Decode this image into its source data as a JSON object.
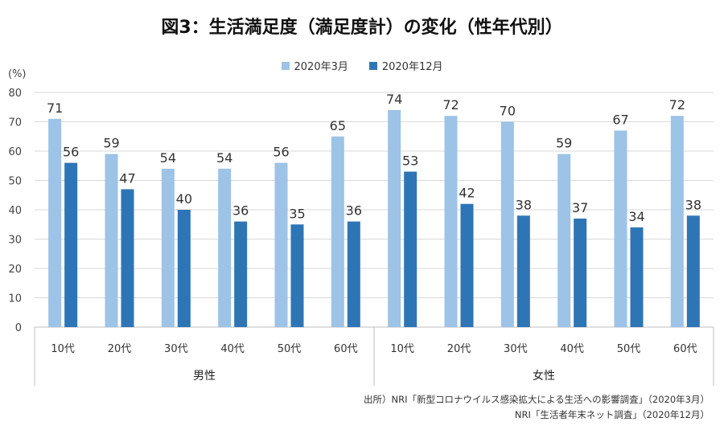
{
  "chart_data": {
    "type": "bar",
    "title": "図3：生活満足度（満足度計）の変化（性年代別）",
    "ylabel": "(%)",
    "ylim": [
      0,
      80
    ],
    "yticks": [
      0,
      10,
      20,
      30,
      40,
      50,
      60,
      70,
      80
    ],
    "grid": true,
    "legend_position": "top-center",
    "groups": [
      {
        "name": "男性",
        "categories": [
          "10代",
          "20代",
          "30代",
          "40代",
          "50代",
          "60代"
        ]
      },
      {
        "name": "女性",
        "categories": [
          "10代",
          "20代",
          "30代",
          "40代",
          "50代",
          "60代"
        ]
      }
    ],
    "series": [
      {
        "name": "2020年3月",
        "color": "#9dc3e6",
        "values": [
          71,
          59,
          54,
          54,
          56,
          65,
          74,
          72,
          70,
          59,
          67,
          72
        ]
      },
      {
        "name": "2020年12月",
        "color": "#2e75b6",
        "values": [
          56,
          47,
          40,
          36,
          35,
          36,
          53,
          42,
          38,
          37,
          34,
          38
        ]
      }
    ]
  },
  "source": {
    "line1": "出所）NRI「新型コロナウイルス感染拡大による生活への影響調査」（2020年3月）",
    "line2": "NRI「生活者年末ネット調査」（2020年12月）"
  }
}
